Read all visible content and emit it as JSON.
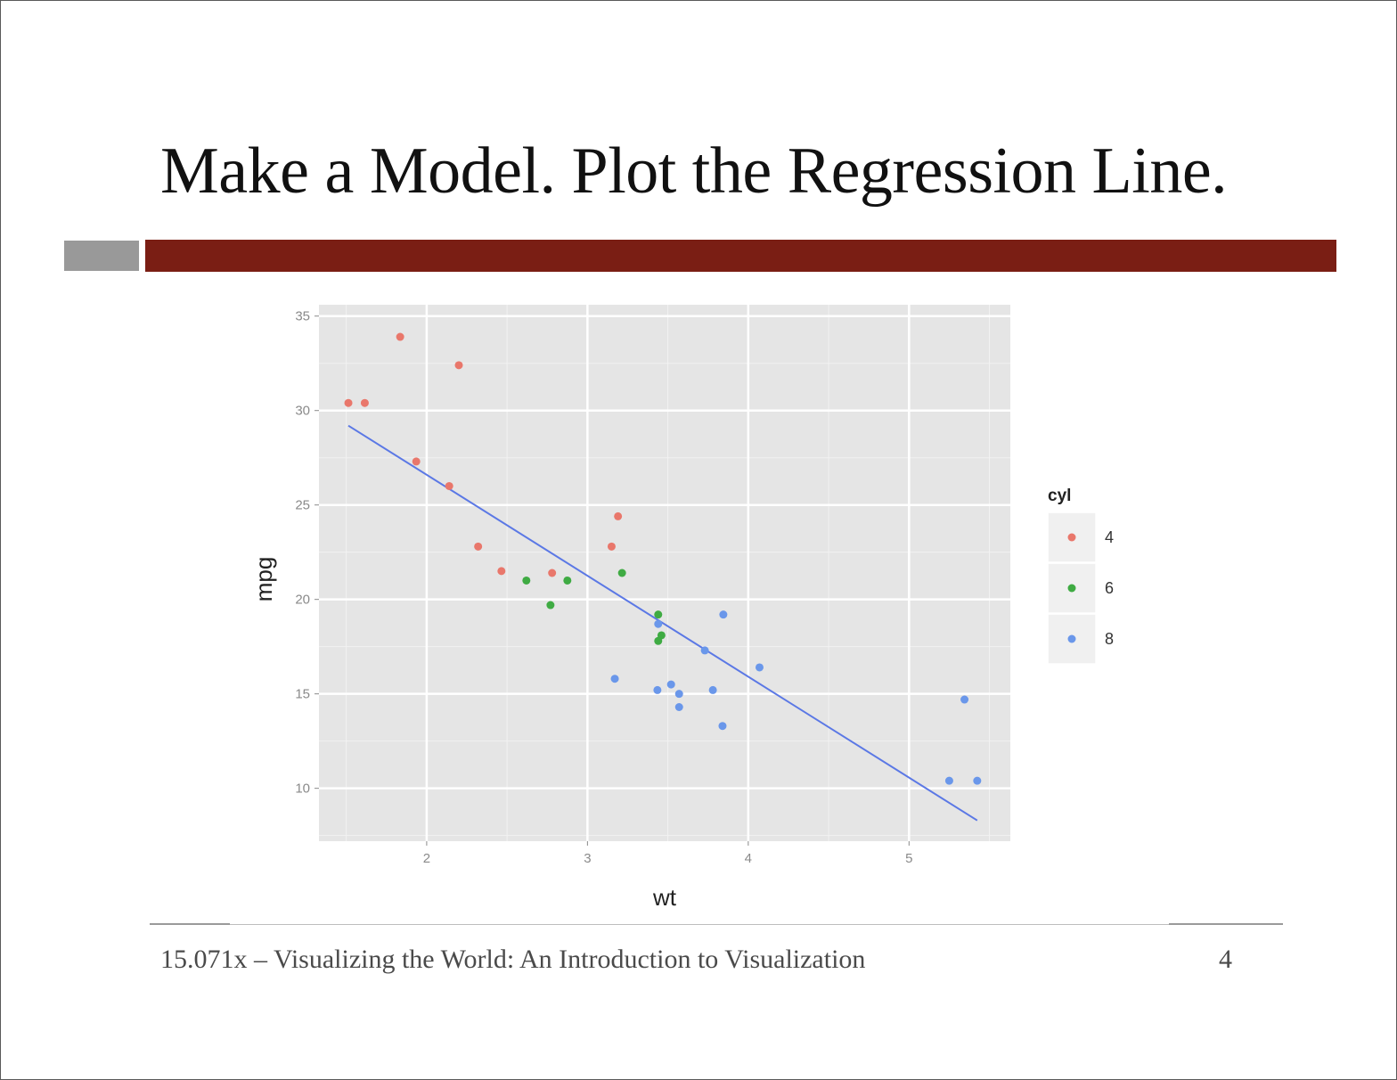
{
  "slide": {
    "title": "Make a Model. Plot the Regression Line.",
    "footer": "15.071x – Visualizing the World: An Introduction to Visualization",
    "page_number": "4",
    "accent_color": "#7a1e14",
    "gray_block_color": "#999999"
  },
  "chart_data": {
    "type": "scatter",
    "title": "",
    "xlabel": "wt",
    "ylabel": "mpg",
    "xlim": [
      1.33,
      5.63
    ],
    "ylim": [
      7.2,
      35.6
    ],
    "x_ticks": [
      2,
      3,
      4,
      5
    ],
    "y_ticks": [
      10,
      15,
      20,
      25,
      30,
      35
    ],
    "grid": true,
    "panel_background": "#e5e5e5",
    "legend": {
      "title": "cyl",
      "placement": "right",
      "entries": [
        {
          "label": "4",
          "color": "#e9776b"
        },
        {
          "label": "6",
          "color": "#3fab43"
        },
        {
          "label": "8",
          "color": "#6a97ea"
        }
      ]
    },
    "series": [
      {
        "name": "4",
        "color": "#e9776b",
        "points": [
          [
            2.32,
            22.8
          ],
          [
            3.19,
            24.4
          ],
          [
            3.15,
            22.8
          ],
          [
            2.2,
            32.4
          ],
          [
            1.615,
            30.4
          ],
          [
            1.835,
            33.9
          ],
          [
            2.465,
            21.5
          ],
          [
            1.935,
            27.3
          ],
          [
            2.14,
            26.0
          ],
          [
            1.513,
            30.4
          ],
          [
            2.78,
            21.4
          ]
        ]
      },
      {
        "name": "6",
        "color": "#3fab43",
        "points": [
          [
            2.62,
            21.0
          ],
          [
            2.875,
            21.0
          ],
          [
            3.215,
            21.4
          ],
          [
            3.46,
            18.1
          ],
          [
            3.44,
            19.2
          ],
          [
            3.44,
            17.8
          ],
          [
            2.77,
            19.7
          ]
        ]
      },
      {
        "name": "8",
        "color": "#6a97ea",
        "points": [
          [
            3.44,
            18.7
          ],
          [
            3.57,
            14.3
          ],
          [
            4.07,
            16.4
          ],
          [
            3.73,
            17.3
          ],
          [
            3.78,
            15.2
          ],
          [
            5.25,
            10.4
          ],
          [
            5.424,
            10.4
          ],
          [
            5.345,
            14.7
          ],
          [
            3.52,
            15.5
          ],
          [
            3.435,
            15.2
          ],
          [
            3.84,
            13.3
          ],
          [
            3.845,
            19.2
          ],
          [
            3.17,
            15.8
          ],
          [
            3.57,
            15.0
          ]
        ]
      }
    ],
    "regression_line": {
      "color": "#5b78e5",
      "intercept": 37.285,
      "slope": -5.344,
      "x_range": [
        1.513,
        5.424
      ]
    }
  }
}
